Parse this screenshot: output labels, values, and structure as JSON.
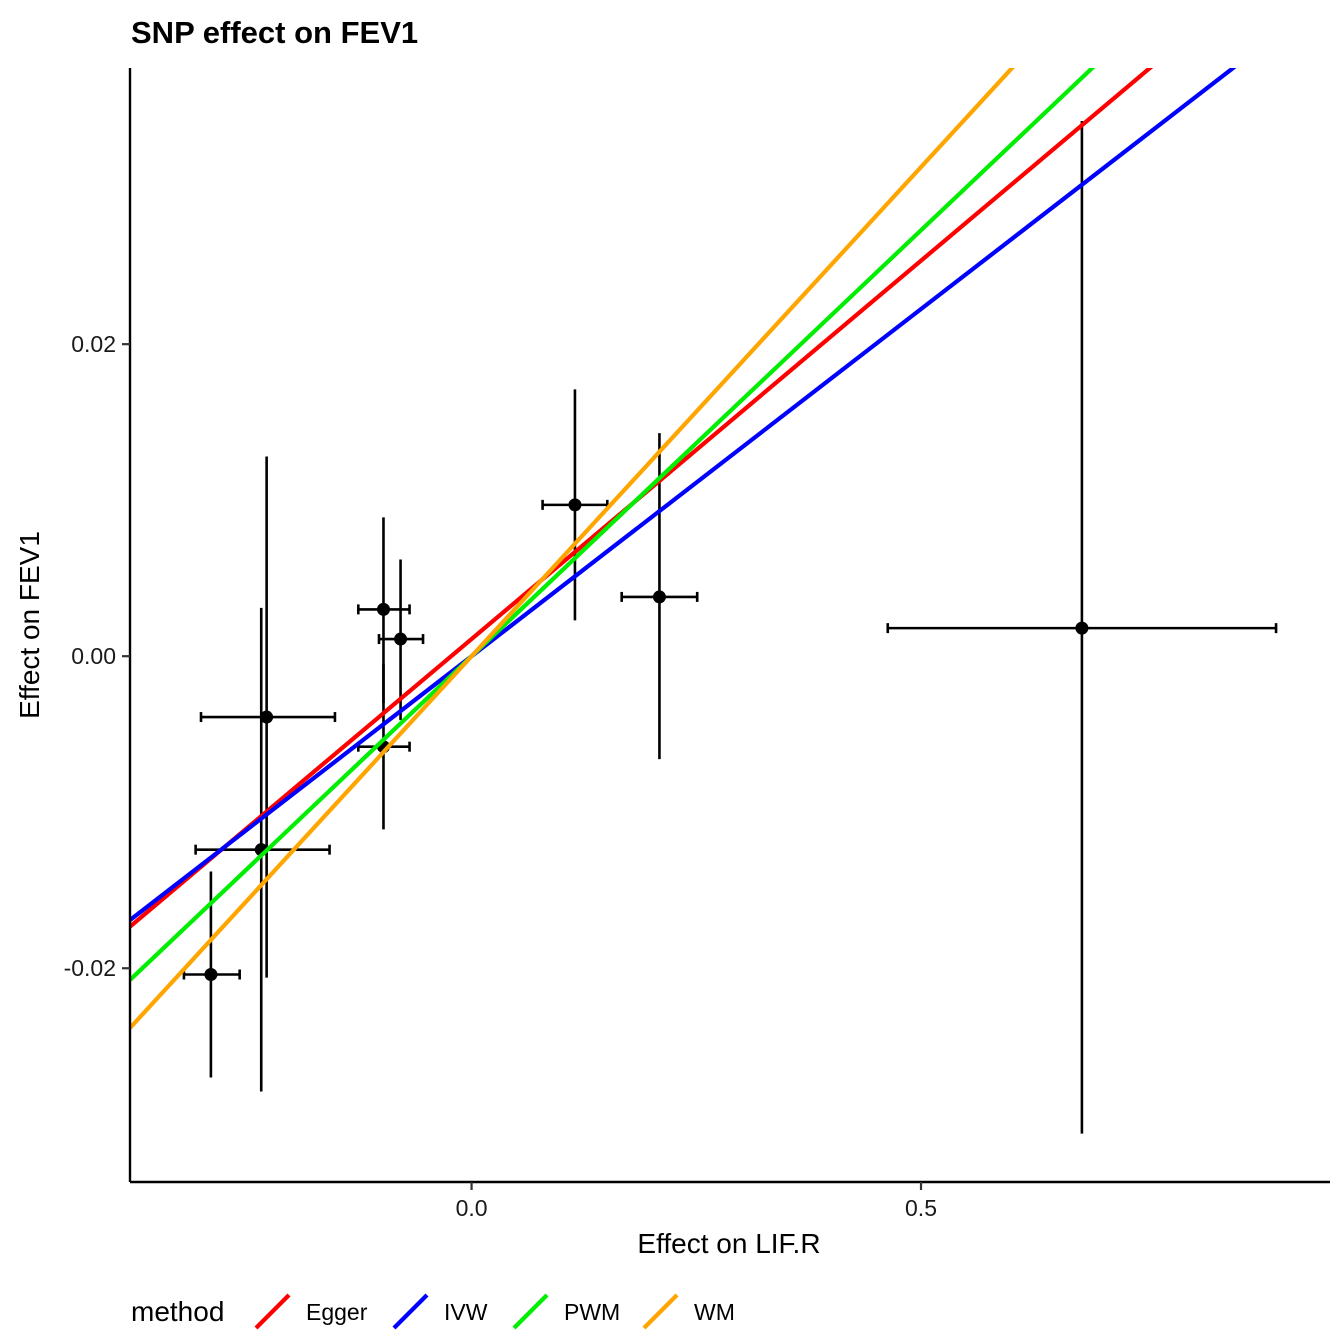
{
  "chart_data": {
    "type": "scatter",
    "title": "SNP effect on FEV1",
    "xlabel": "Effect on LIF.R",
    "ylabel": "Effect on FEV1",
    "xlim": [
      -0.38,
      0.955
    ],
    "ylim": [
      -0.0337,
      0.0377
    ],
    "x_ticks": [
      {
        "value": 0.0,
        "label": "0.0"
      },
      {
        "value": 0.5,
        "label": "0.5"
      }
    ],
    "y_ticks": [
      {
        "value": -0.02,
        "label": "-0.02"
      },
      {
        "value": 0.0,
        "label": "0.00"
      },
      {
        "value": 0.02,
        "label": "0.02"
      }
    ],
    "grid": false,
    "legend_position": "bottom",
    "legend_title": "method",
    "points": [
      {
        "x": -0.29,
        "y": -0.0204,
        "x_lo": -0.32,
        "x_hi": -0.258,
        "y_lo": -0.027,
        "y_hi": -0.0138
      },
      {
        "x": -0.234,
        "y": -0.0124,
        "x_lo": -0.307,
        "x_hi": -0.158,
        "y_lo": -0.0279,
        "y_hi": 0.0031
      },
      {
        "x": -0.228,
        "y": -0.0039,
        "x_lo": -0.301,
        "x_hi": -0.152,
        "y_lo": -0.0206,
        "y_hi": 0.0128
      },
      {
        "x": -0.098,
        "y": 0.003,
        "x_lo": -0.126,
        "x_hi": -0.069,
        "y_lo": -0.003,
        "y_hi": 0.0089
      },
      {
        "x": -0.079,
        "y": 0.0011,
        "x_lo": -0.103,
        "x_hi": -0.054,
        "y_lo": -0.0041,
        "y_hi": 0.0062
      },
      {
        "x": -0.098,
        "y": -0.0058,
        "x_lo": -0.126,
        "x_hi": -0.069,
        "y_lo": -0.0111,
        "y_hi": -0.0005
      },
      {
        "x": 0.115,
        "y": 0.0097,
        "x_lo": 0.079,
        "x_hi": 0.151,
        "y_lo": 0.0023,
        "y_hi": 0.0171
      },
      {
        "x": 0.209,
        "y": 0.0038,
        "x_lo": 0.167,
        "x_hi": 0.251,
        "y_lo": -0.0066,
        "y_hi": 0.0143
      },
      {
        "x": 0.679,
        "y": 0.0018,
        "x_lo": 0.463,
        "x_hi": 0.895,
        "y_lo": -0.0306,
        "y_hi": 0.0343
      }
    ],
    "series": [
      {
        "name": "Egger",
        "color": "#ff0000",
        "intercept": 0.0011,
        "slope": 0.0485
      },
      {
        "name": "IVW",
        "color": "#0000ff",
        "intercept": 0.0,
        "slope": 0.0445
      },
      {
        "name": "PWM",
        "color": "#00ee00",
        "intercept": 0.0,
        "slope": 0.0546
      },
      {
        "name": "WM",
        "color": "#ffa500",
        "intercept": 0.0,
        "slope": 0.0627
      }
    ]
  }
}
